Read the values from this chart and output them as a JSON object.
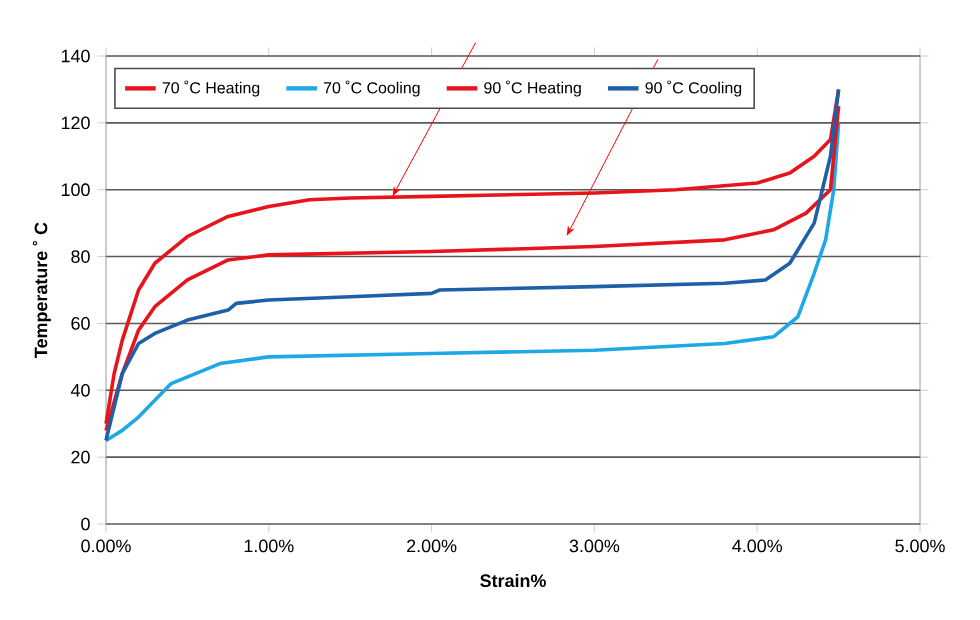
{
  "chart_data": {
    "type": "line",
    "xlabel": "Strain%",
    "ylabel": "Temperature ˚ C",
    "xlim": [
      0,
      5
    ],
    "xticks": [
      {
        "value": 0,
        "label": "0.00%"
      },
      {
        "value": 1,
        "label": "1.00%"
      },
      {
        "value": 2,
        "label": "2.00%"
      },
      {
        "value": 3,
        "label": "3.00%"
      },
      {
        "value": 4,
        "label": "4.00%"
      },
      {
        "value": 5,
        "label": "5.00%"
      }
    ],
    "ylim": [
      0,
      140
    ],
    "yticks": [
      0,
      20,
      40,
      60,
      80,
      100,
      120,
      140
    ],
    "grid": "y",
    "legend": "top",
    "marker": "none",
    "line_style": "solid",
    "series": [
      {
        "name": "70 ˚C Heating",
        "color": "#e8141c",
        "x": [
          0,
          0.05,
          0.1,
          0.2,
          0.3,
          0.5,
          0.75,
          1,
          1.25,
          1.5,
          2,
          3,
          3.5,
          4,
          4.2,
          4.35,
          4.45,
          4.5
        ],
        "values": [
          30,
          45,
          55,
          70,
          78,
          86,
          92,
          95,
          97,
          97.5,
          98,
          99,
          100,
          102,
          105,
          110,
          115,
          130
        ]
      },
      {
        "name": "70 ˚C Cooling",
        "color": "#1fa8e6",
        "x": [
          0,
          0.1,
          0.2,
          0.3,
          0.4,
          0.5,
          0.7,
          1,
          2,
          3,
          3.8,
          4.1,
          4.25,
          4.35,
          4.42,
          4.47,
          4.5
        ],
        "values": [
          25,
          28,
          32,
          37,
          42,
          44,
          48,
          50,
          51,
          52,
          54,
          56,
          62,
          75,
          85,
          100,
          120
        ]
      },
      {
        "name": "90 ˚C Heating",
        "color": "#e8141c",
        "x": [
          0,
          0.1,
          0.2,
          0.3,
          0.5,
          0.75,
          1,
          2,
          3,
          3.8,
          4.1,
          4.3,
          4.45,
          4.5
        ],
        "values": [
          28,
          45,
          58,
          65,
          73,
          79,
          80.5,
          81.5,
          83,
          85,
          88,
          93,
          100,
          125
        ]
      },
      {
        "name": "90 ˚C Cooling",
        "color": "#1d5fa8",
        "x": [
          0,
          0.1,
          0.2,
          0.3,
          0.5,
          0.75,
          0.8,
          1,
          1.5,
          2,
          2.05,
          3,
          3.8,
          4.05,
          4.2,
          4.35,
          4.45,
          4.5
        ],
        "values": [
          25,
          45,
          54,
          57,
          61,
          64,
          66,
          67,
          68,
          69,
          70,
          71,
          72,
          73,
          78,
          90,
          110,
          130
        ]
      }
    ]
  }
}
